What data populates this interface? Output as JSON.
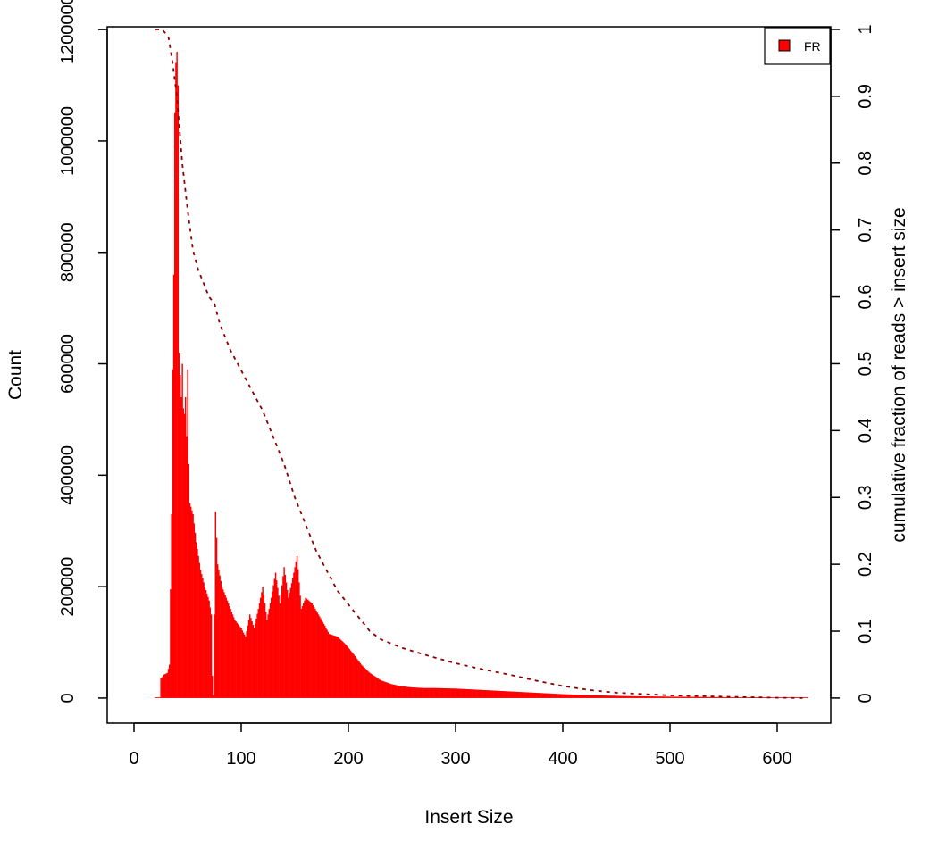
{
  "chart_data": {
    "type": "bar",
    "title": "",
    "xlabel": "Insert Size",
    "ylabel": "Count",
    "ylabel_right": "cumulative fraction of reads > insert size",
    "xlim": [
      -25,
      650
    ],
    "ylim": [
      -45000,
      1205000
    ],
    "y2lim": [
      -0.0375,
      1.004
    ],
    "x_ticks": [
      0,
      100,
      200,
      300,
      400,
      500,
      600
    ],
    "y_ticks": [
      0,
      200000,
      400000,
      600000,
      800000,
      1000000,
      1200000
    ],
    "y2_ticks": [
      0,
      0.1,
      0.2,
      0.3,
      0.4,
      0.5,
      0.6,
      0.7,
      0.8,
      0.9,
      1
    ],
    "legend": {
      "position": "top-right",
      "entries": [
        "FR"
      ]
    },
    "bar_color": "#ff0000",
    "cdf_color": "#8b0000",
    "grid": false,
    "histogram_profile": [
      [
        20,
        0
      ],
      [
        24,
        0
      ],
      [
        25,
        35000
      ],
      [
        28,
        42000
      ],
      [
        31,
        45000
      ],
      [
        33,
        60000
      ],
      [
        35,
        330000
      ],
      [
        36,
        590000
      ],
      [
        37,
        760000
      ],
      [
        38,
        1050000
      ],
      [
        39,
        1140000
      ],
      [
        40,
        1160000
      ],
      [
        41,
        1100000
      ],
      [
        42,
        620000
      ],
      [
        43,
        580000
      ],
      [
        44,
        540000
      ],
      [
        45,
        600000
      ],
      [
        46,
        520000
      ],
      [
        47,
        510000
      ],
      [
        48,
        540000
      ],
      [
        49,
        470000
      ],
      [
        50,
        590000
      ],
      [
        51,
        420000
      ],
      [
        52,
        350000
      ],
      [
        55,
        330000
      ],
      [
        58,
        280000
      ],
      [
        62,
        230000
      ],
      [
        66,
        200000
      ],
      [
        70,
        175000
      ],
      [
        72,
        150000
      ],
      [
        73,
        40000
      ],
      [
        74,
        5000
      ],
      [
        75,
        150000
      ],
      [
        76,
        335000
      ],
      [
        78,
        240000
      ],
      [
        82,
        200000
      ],
      [
        88,
        170000
      ],
      [
        94,
        140000
      ],
      [
        100,
        125000
      ],
      [
        104,
        110000
      ],
      [
        108,
        150000
      ],
      [
        112,
        125000
      ],
      [
        116,
        160000
      ],
      [
        120,
        200000
      ],
      [
        124,
        140000
      ],
      [
        128,
        180000
      ],
      [
        132,
        225000
      ],
      [
        136,
        170000
      ],
      [
        140,
        235000
      ],
      [
        144,
        180000
      ],
      [
        148,
        215000
      ],
      [
        152,
        255000
      ],
      [
        156,
        160000
      ],
      [
        160,
        180000
      ],
      [
        166,
        170000
      ],
      [
        172,
        150000
      ],
      [
        178,
        130000
      ],
      [
        182,
        115000
      ],
      [
        190,
        110000
      ],
      [
        198,
        95000
      ],
      [
        205,
        78000
      ],
      [
        212,
        60000
      ],
      [
        220,
        45000
      ],
      [
        230,
        32000
      ],
      [
        240,
        25000
      ],
      [
        250,
        21000
      ],
      [
        260,
        19000
      ],
      [
        270,
        18000
      ],
      [
        280,
        18000
      ],
      [
        290,
        17500
      ],
      [
        300,
        17000
      ],
      [
        320,
        15000
      ],
      [
        340,
        13000
      ],
      [
        360,
        11000
      ],
      [
        380,
        9000
      ],
      [
        400,
        7000
      ],
      [
        430,
        5000
      ],
      [
        460,
        3500
      ],
      [
        500,
        2500
      ],
      [
        550,
        1500
      ],
      [
        600,
        800
      ],
      [
        628,
        500
      ]
    ],
    "cdf_profile": [
      [
        20,
        1.0
      ],
      [
        26,
        1.0
      ],
      [
        32,
        0.99
      ],
      [
        36,
        0.95
      ],
      [
        40,
        0.9
      ],
      [
        45,
        0.8
      ],
      [
        50,
        0.73
      ],
      [
        55,
        0.67
      ],
      [
        60,
        0.64
      ],
      [
        65,
        0.62
      ],
      [
        70,
        0.6
      ],
      [
        75,
        0.59
      ],
      [
        80,
        0.56
      ],
      [
        90,
        0.52
      ],
      [
        100,
        0.49
      ],
      [
        110,
        0.46
      ],
      [
        120,
        0.43
      ],
      [
        130,
        0.39
      ],
      [
        140,
        0.35
      ],
      [
        150,
        0.3
      ],
      [
        160,
        0.26
      ],
      [
        170,
        0.22
      ],
      [
        180,
        0.19
      ],
      [
        190,
        0.16
      ],
      [
        200,
        0.14
      ],
      [
        210,
        0.12
      ],
      [
        220,
        0.1
      ],
      [
        230,
        0.088
      ],
      [
        250,
        0.075
      ],
      [
        275,
        0.063
      ],
      [
        300,
        0.052
      ],
      [
        325,
        0.043
      ],
      [
        350,
        0.035
      ],
      [
        375,
        0.026
      ],
      [
        400,
        0.018
      ],
      [
        425,
        0.012
      ],
      [
        450,
        0.008
      ],
      [
        500,
        0.004
      ],
      [
        550,
        0.002
      ],
      [
        600,
        0.0005
      ],
      [
        628,
        0.0
      ]
    ]
  }
}
